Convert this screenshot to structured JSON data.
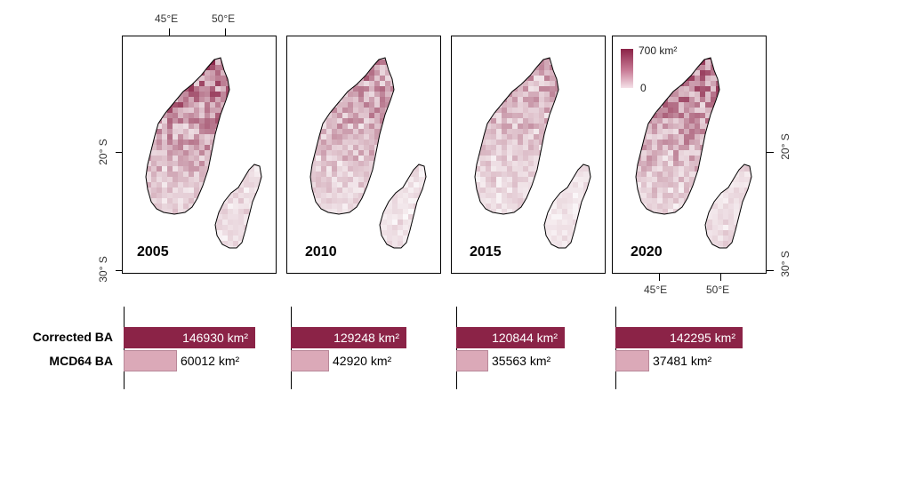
{
  "axes": {
    "top_lon_ticks": [
      "45°E",
      "50°E"
    ],
    "bottom_lon_ticks": [
      "45°E",
      "50°E"
    ],
    "lat_ticks": [
      "20° S",
      "30° S"
    ]
  },
  "legend": {
    "max_label": "700 km²",
    "min_label": "0",
    "colors": [
      "#8b2347",
      "#f5e1e8"
    ]
  },
  "row_labels": {
    "corrected": "Corrected BA",
    "mcd64": "MCD64 BA"
  },
  "colors": {
    "corrected": "#8b2347",
    "mcd64": "#dba9b8"
  },
  "chart_data": [
    {
      "type": "heatmap",
      "panels": [
        {
          "year": "2005"
        },
        {
          "year": "2010"
        },
        {
          "year": "2015"
        },
        {
          "year": "2020"
        }
      ],
      "color_scale": {
        "min": 0,
        "max": 700,
        "unit": "km²"
      }
    },
    {
      "type": "bar",
      "orientation": "horizontal",
      "categories": [
        "2005",
        "2010",
        "2015",
        "2020"
      ],
      "series": [
        {
          "name": "Corrected BA",
          "values": [
            146930,
            129248,
            120844,
            142295
          ],
          "labels": [
            "146930 km²",
            "129248 km²",
            "120844 km²",
            "142295 km²"
          ]
        },
        {
          "name": "MCD64 BA",
          "values": [
            60012,
            42920,
            35563,
            37481
          ],
          "labels": [
            "60012 km²",
            "42920 km²",
            "35563 km²",
            "37481 km²"
          ]
        }
      ]
    }
  ]
}
